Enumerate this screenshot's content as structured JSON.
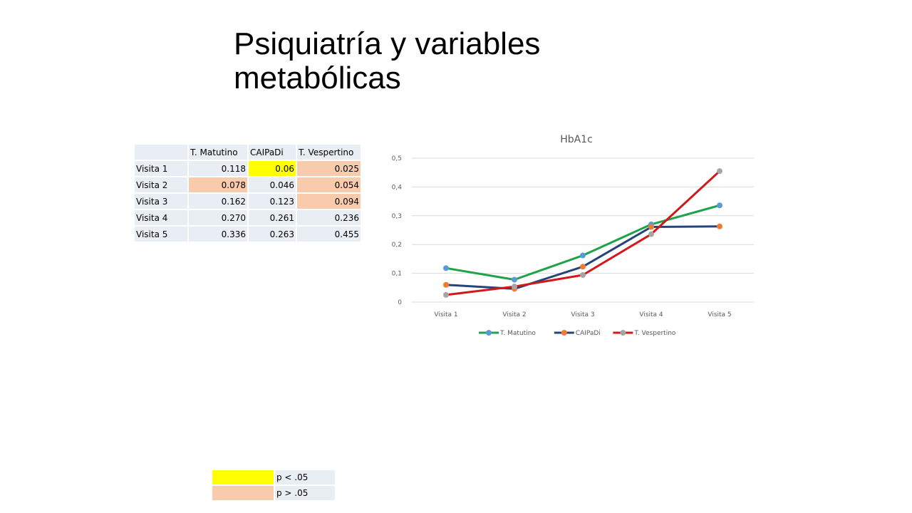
{
  "title": "Psiquiatría y variables metabólicas",
  "table": {
    "headers": [
      "",
      "T. Matutino",
      "CAIPaDi",
      "T. Vespertino"
    ],
    "rows": [
      {
        "label": "Visita 1",
        "cells": [
          {
            "text": "0.118",
            "color": "#e9edf4"
          },
          {
            "text": "0.06",
            "color": "#ffff00"
          },
          {
            "text": "0.025",
            "color": "#f8cbad"
          }
        ]
      },
      {
        "label": "Visita 2",
        "cells": [
          {
            "text": "0.078",
            "color": "#f8cbad"
          },
          {
            "text": "0.046",
            "color": "#e9edf4"
          },
          {
            "text": "0.054",
            "color": "#f8cbad"
          }
        ]
      },
      {
        "label": "Visita 3",
        "cells": [
          {
            "text": "0.162",
            "color": "#e9edf4"
          },
          {
            "text": "0.123",
            "color": "#e9edf4"
          },
          {
            "text": "0.094",
            "color": "#f8cbad"
          }
        ]
      },
      {
        "label": "Visita 4",
        "cells": [
          {
            "text": "0.270",
            "color": "#e9edf4"
          },
          {
            "text": "0.261",
            "color": "#e9edf4"
          },
          {
            "text": "0.236",
            "color": "#e9edf4"
          }
        ]
      },
      {
        "label": "Visita 5",
        "cells": [
          {
            "text": "0.336",
            "color": "#e9edf4"
          },
          {
            "text": "0.263",
            "color": "#e9edf4"
          },
          {
            "text": "0.455",
            "color": "#e9edf4"
          }
        ]
      }
    ]
  },
  "significance_legend": [
    {
      "label": "p < .05",
      "color": "#ffff00"
    },
    {
      "label": "p > .05",
      "color": "#f8cbad"
    }
  ],
  "chart_data": {
    "type": "line",
    "title": "HbA1c",
    "categories": [
      "Visita 1",
      "Visita 2",
      "Visita 3",
      "Visita 4",
      "Visita 5"
    ],
    "ylim": [
      0,
      0.5
    ],
    "yticks": [
      {
        "value": 0,
        "label": "0"
      },
      {
        "value": 0.1,
        "label": "0,1"
      },
      {
        "value": 0.2,
        "label": "0,2"
      },
      {
        "value": 0.3,
        "label": "0,3"
      },
      {
        "value": 0.4,
        "label": "0,4"
      },
      {
        "value": 0.5,
        "label": "0,5"
      }
    ],
    "grid": true,
    "legend_position": "bottom",
    "series": [
      {
        "name": "T. Matutino",
        "line_color": "#1fa34a",
        "marker_color": "#5b9bd5",
        "values": [
          0.118,
          0.078,
          0.162,
          0.27,
          0.336
        ]
      },
      {
        "name": "CAIPaDi",
        "line_color": "#264478",
        "marker_color": "#ed7d31",
        "values": [
          0.06,
          0.046,
          0.123,
          0.261,
          0.263
        ]
      },
      {
        "name": "T. Vespertino",
        "line_color": "#d0191b",
        "marker_color": "#a5a5a5",
        "values": [
          0.025,
          0.054,
          0.094,
          0.236,
          0.455
        ]
      }
    ]
  }
}
